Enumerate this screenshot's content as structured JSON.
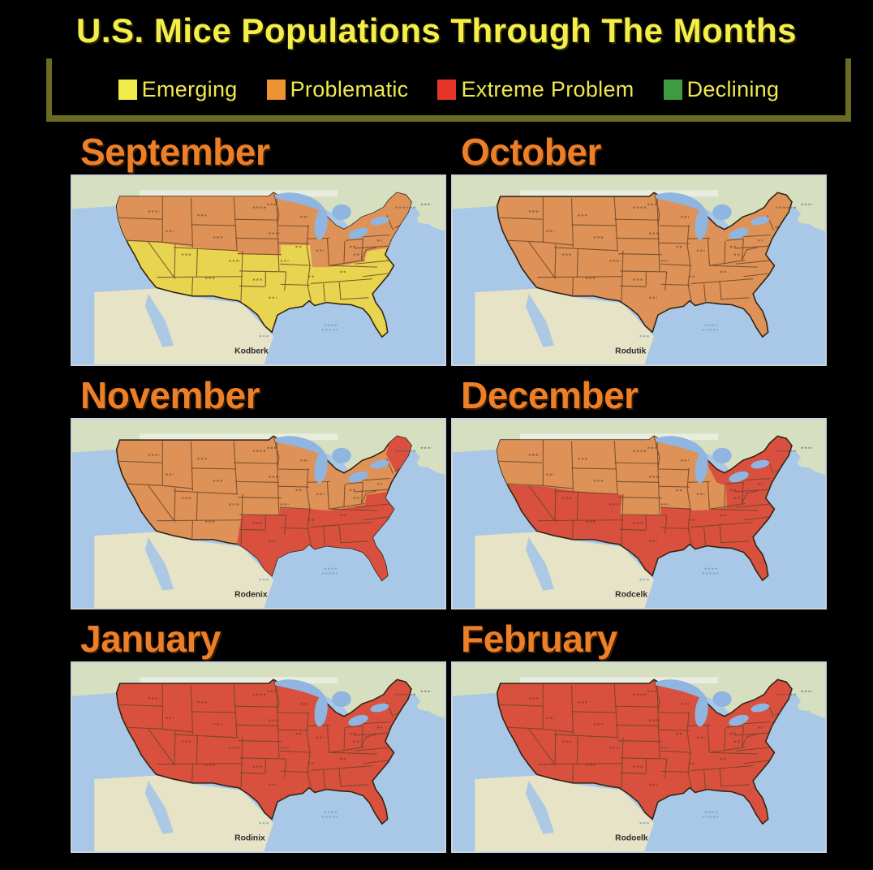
{
  "title": "U.S. Mice Populations Through The Months",
  "legend": {
    "items": [
      {
        "label": "Emerging",
        "color": "#f1eb4b"
      },
      {
        "label": "Problematic",
        "color": "#ee9233"
      },
      {
        "label": "Extreme Problem",
        "color": "#e53529"
      },
      {
        "label": "Declining",
        "color": "#3f9b3f"
      }
    ]
  },
  "map_palette": {
    "yellow": "#e9d44f",
    "orange": "#de9257",
    "red": "#d9503e",
    "water": "#a9c7e6",
    "lake_water": "#8fb5e0",
    "foreign_land": "#d6dfc0",
    "mexico_land": "#e7e3c7",
    "state_border": "#6b4527",
    "outline": "#2f2310"
  },
  "months": [
    {
      "name": "September",
      "watermark": "Kodberk",
      "status_by_region": {
        "base": "yellow",
        "north": "orange"
      }
    },
    {
      "name": "October",
      "watermark": "Rodutik",
      "status_by_region": {
        "base": "orange"
      }
    },
    {
      "name": "November",
      "watermark": "Rodenix",
      "status_by_region": {
        "base": "orange",
        "southeast": "red",
        "new_england": "red"
      }
    },
    {
      "name": "December",
      "watermark": "Rodcelk",
      "status_by_region": {
        "base": "red",
        "northwest": "orange"
      }
    },
    {
      "name": "January",
      "watermark": "Rodinix",
      "status_by_region": {
        "base": "red"
      }
    },
    {
      "name": "February",
      "watermark": "Rodoelk",
      "status_by_region": {
        "base": "red"
      }
    }
  ]
}
